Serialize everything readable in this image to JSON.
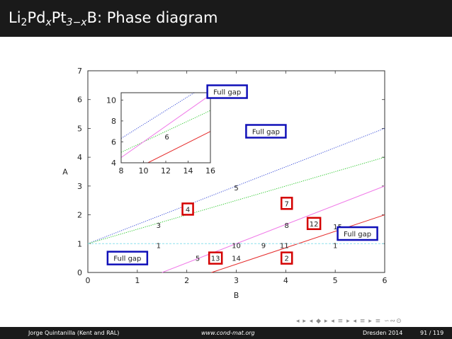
{
  "header": {
    "title_prefix": "Li",
    "title_sub1": "2",
    "title_mid1": "Pd",
    "title_sub2": "x",
    "title_mid2": "Pt",
    "title_sub3": "3−x",
    "title_suffix": "B: Phase diagram"
  },
  "chart_data": {
    "type": "line",
    "xlabel": "B",
    "ylabel": "A",
    "xlim": [
      0,
      6
    ],
    "ylim": [
      0,
      7
    ],
    "x_ticks": [
      "0",
      "1",
      "2",
      "3",
      "4",
      "5",
      "6"
    ],
    "y_ticks": [
      "0",
      "1",
      "2",
      "3",
      "4",
      "5",
      "6",
      "7"
    ],
    "series": [
      {
        "style": "dotted",
        "color": "#3b4fd8",
        "x": [
          0,
          6
        ],
        "y": [
          1,
          5
        ]
      },
      {
        "style": "dotted",
        "color": "#2ec82e",
        "x": [
          0,
          6
        ],
        "y": [
          1,
          4
        ]
      },
      {
        "style": "solid",
        "color": "#f07ae8",
        "x": [
          1.5,
          6
        ],
        "y": [
          0,
          3
        ]
      },
      {
        "style": "solid",
        "color": "#e52a2a",
        "x": [
          2.5,
          6
        ],
        "y": [
          0,
          2
        ]
      },
      {
        "style": "dashed",
        "color": "#8ee0ee",
        "x": [
          0,
          6
        ],
        "y": [
          1,
          1
        ]
      }
    ],
    "labels": [
      {
        "text": "5",
        "x": 3.0,
        "y": 2.95
      },
      {
        "text": "3",
        "x": 1.43,
        "y": 1.65
      },
      {
        "text": "1",
        "x": 1.43,
        "y": 0.95
      },
      {
        "text": "10",
        "x": 3.0,
        "y": 0.95
      },
      {
        "text": "9",
        "x": 3.55,
        "y": 0.95
      },
      {
        "text": "11",
        "x": 3.97,
        "y": 0.95
      },
      {
        "text": "1",
        "x": 5.0,
        "y": 0.95
      },
      {
        "text": "8",
        "x": 4.02,
        "y": 1.65
      },
      {
        "text": "15",
        "x": 5.05,
        "y": 1.6
      },
      {
        "text": "5",
        "x": 2.22,
        "y": 0.5
      },
      {
        "text": "14",
        "x": 3.0,
        "y": 0.5
      }
    ],
    "red_boxes": [
      {
        "text": "4",
        "x": 2.02,
        "y": 2.2
      },
      {
        "text": "7",
        "x": 4.02,
        "y": 2.4
      },
      {
        "text": "12",
        "x": 4.57,
        "y": 1.7
      },
      {
        "text": "13",
        "x": 2.58,
        "y": 0.5
      },
      {
        "text": "2",
        "x": 4.02,
        "y": 0.5
      }
    ],
    "blue_boxes": [
      {
        "text": "Full gap",
        "x": 3.6,
        "y": 4.9
      },
      {
        "text": "Full gap",
        "x": 5.45,
        "y": 1.35
      },
      {
        "text": "Full gap",
        "x": 0.8,
        "y": 0.5
      }
    ],
    "inset": {
      "xlim": [
        8,
        16
      ],
      "ylim": [
        4,
        10.7
      ],
      "x_ticks": [
        "8",
        "10",
        "12",
        "14",
        "16"
      ],
      "y_ticks": [
        "4",
        "6",
        "8",
        "10"
      ],
      "series": [
        {
          "style": "dotted",
          "color": "#3b4fd8",
          "x": [
            8,
            16
          ],
          "y": [
            6.33,
            11.67
          ]
        },
        {
          "style": "dotted",
          "color": "#2ec82e",
          "x": [
            8,
            16
          ],
          "y": [
            5,
            9
          ]
        },
        {
          "style": "solid",
          "color": "#f07ae8",
          "x": [
            8,
            16
          ],
          "y": [
            4.5,
            10.5
          ]
        },
        {
          "style": "solid",
          "color": "#e52a2a",
          "x": [
            10.4,
            16
          ],
          "y": [
            4,
            7
          ]
        }
      ],
      "labels": [
        {
          "text": "6",
          "x": 12.1,
          "y": 6.5
        }
      ],
      "blue_boxes": [
        {
          "text": "Full gap",
          "x": 17.5,
          "y": 10.8
        }
      ]
    }
  },
  "footer": {
    "author": "Jorge Quintanilla (Kent and RAL)",
    "url": "www.cond-mat.org",
    "venue": "Dresden 2014",
    "page": "91 / 119"
  },
  "nav": {
    "symbols": "◂ ▸ ◂ ◆ ▸ ◂ ≡ ▸ ◂ ≡ ▸ ≡ ∽∾⊙"
  }
}
